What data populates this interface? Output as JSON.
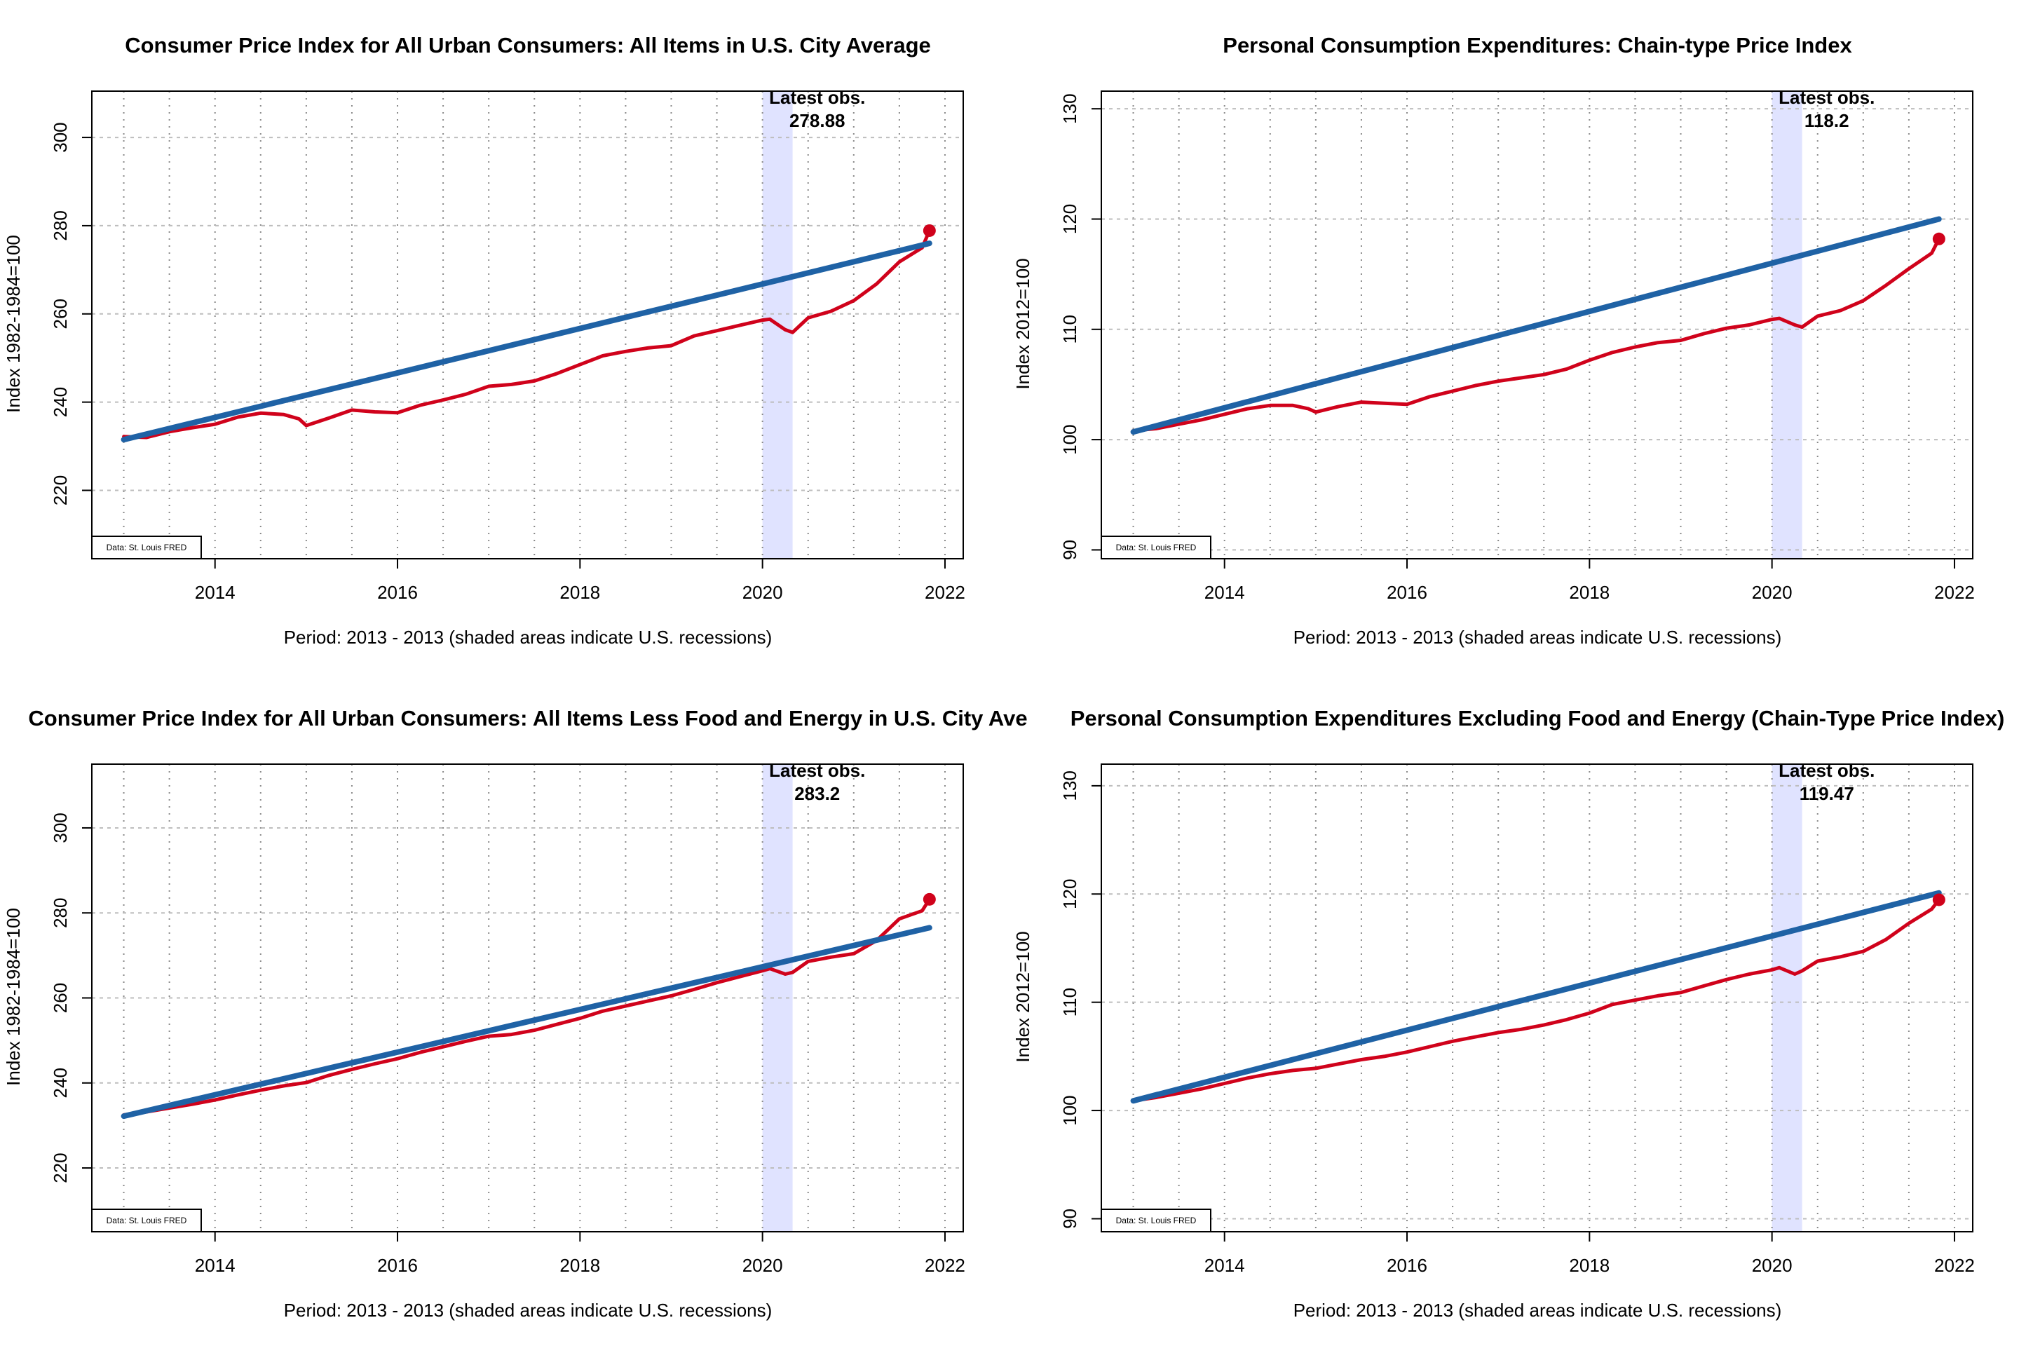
{
  "colors": {
    "actual": "#d0021b",
    "trend": "#1f62a5",
    "recession": "#e0e3ff",
    "grid": "#bdbdbd"
  },
  "chart_data": [
    {
      "type": "line",
      "title": "Consumer Price Index for All Urban Consumers: All Items in U.S. City Average",
      "xlabel": "Period: 2013 - 2013 (shaded areas indicate U.S. recessions)",
      "ylabel": "Index 1982-1984=100",
      "xlim": [
        2012.65,
        2022.2
      ],
      "ylim": [
        204.5,
        310.5
      ],
      "xticks": [
        "2014",
        "2016",
        "2018",
        "2020",
        "2022"
      ],
      "yticks": [
        "220",
        "240",
        "260",
        "280",
        "300"
      ],
      "grid": true,
      "recession": [
        2020.0,
        2020.33
      ],
      "latest_label": "Latest obs.",
      "latest_value": "278.88",
      "source": "Data: St. Louis FRED",
      "series": [
        {
          "role": "actual",
          "x": [
            2013.0,
            2013.25,
            2013.5,
            2013.75,
            2014.0,
            2014.25,
            2014.5,
            2014.75,
            2014.92,
            2015.0,
            2015.25,
            2015.5,
            2015.75,
            2016.0,
            2016.25,
            2016.5,
            2016.75,
            2017.0,
            2017.25,
            2017.5,
            2017.75,
            2018.0,
            2018.25,
            2018.5,
            2018.75,
            2019.0,
            2019.25,
            2019.5,
            2019.75,
            2020.0,
            2020.08,
            2020.25,
            2020.33,
            2020.5,
            2020.75,
            2021.0,
            2021.25,
            2021.5,
            2021.75,
            2021.83
          ],
          "y": [
            232.2,
            232.0,
            233.3,
            234.2,
            235.0,
            236.6,
            237.5,
            237.2,
            236.2,
            234.7,
            236.4,
            238.2,
            237.8,
            237.6,
            239.3,
            240.5,
            241.8,
            243.6,
            244.0,
            244.8,
            246.5,
            248.5,
            250.5,
            251.5,
            252.3,
            252.8,
            255.0,
            256.2,
            257.4,
            258.6,
            258.8,
            256.4,
            255.8,
            259.1,
            260.6,
            263.0,
            266.8,
            271.8,
            275.0,
            278.88
          ]
        },
        {
          "role": "trend",
          "x": [
            2013.0,
            2021.83
          ],
          "y": [
            231.5,
            276.0
          ]
        }
      ]
    },
    {
      "type": "line",
      "title": "Personal Consumption Expenditures: Chain-type Price Index",
      "xlabel": "Period: 2013 - 2013 (shaded areas indicate U.S. recessions)",
      "ylabel": "Index 2012=100",
      "xlim": [
        2012.65,
        2022.2
      ],
      "ylim": [
        89.2,
        131.6
      ],
      "xticks": [
        "2014",
        "2016",
        "2018",
        "2020",
        "2022"
      ],
      "yticks": [
        "90",
        "100",
        "110",
        "120",
        "130"
      ],
      "grid": true,
      "recession": [
        2020.0,
        2020.33
      ],
      "latest_label": "Latest obs.",
      "latest_value": "118.2",
      "source": "Data: St. Louis FRED",
      "series": [
        {
          "role": "actual",
          "x": [
            2013.0,
            2013.25,
            2013.5,
            2013.75,
            2014.0,
            2014.25,
            2014.5,
            2014.75,
            2014.92,
            2015.0,
            2015.25,
            2015.5,
            2015.75,
            2016.0,
            2016.25,
            2016.5,
            2016.75,
            2017.0,
            2017.25,
            2017.5,
            2017.75,
            2018.0,
            2018.25,
            2018.5,
            2018.75,
            2019.0,
            2019.25,
            2019.5,
            2019.75,
            2020.0,
            2020.08,
            2020.25,
            2020.33,
            2020.5,
            2020.75,
            2021.0,
            2021.25,
            2021.5,
            2021.75,
            2021.83
          ],
          "y": [
            100.8,
            101.0,
            101.4,
            101.8,
            102.3,
            102.8,
            103.1,
            103.1,
            102.8,
            102.5,
            103.0,
            103.4,
            103.3,
            103.2,
            103.9,
            104.4,
            104.9,
            105.3,
            105.6,
            105.9,
            106.4,
            107.2,
            107.9,
            108.4,
            108.8,
            109.0,
            109.6,
            110.1,
            110.4,
            110.9,
            111.0,
            110.4,
            110.2,
            111.2,
            111.7,
            112.6,
            114.0,
            115.5,
            116.9,
            118.2
          ]
        },
        {
          "role": "trend",
          "x": [
            2013.0,
            2021.83
          ],
          "y": [
            100.7,
            120.0
          ]
        }
      ]
    },
    {
      "type": "line",
      "title": "Consumer Price Index for All Urban Consumers: All Items Less Food and Energy in U.S. City Ave",
      "xlabel": "Period: 2013 - 2013 (shaded areas indicate U.S. recessions)",
      "ylabel": "Index 1982-1984=100",
      "xlim": [
        2012.65,
        2022.2
      ],
      "ylim": [
        205.0,
        315.0
      ],
      "xticks": [
        "2014",
        "2016",
        "2018",
        "2020",
        "2022"
      ],
      "yticks": [
        "220",
        "240",
        "260",
        "280",
        "300"
      ],
      "grid": true,
      "recession": [
        2020.0,
        2020.33
      ],
      "latest_label": "Latest obs.",
      "latest_value": "283.2",
      "source": "Data: St. Louis FRED",
      "series": [
        {
          "role": "actual",
          "x": [
            2013.0,
            2013.25,
            2013.5,
            2013.75,
            2014.0,
            2014.25,
            2014.5,
            2014.75,
            2015.0,
            2015.25,
            2015.5,
            2015.75,
            2016.0,
            2016.25,
            2016.5,
            2016.75,
            2017.0,
            2017.25,
            2017.5,
            2017.75,
            2018.0,
            2018.25,
            2018.5,
            2018.75,
            2019.0,
            2019.25,
            2019.5,
            2019.75,
            2020.0,
            2020.08,
            2020.25,
            2020.33,
            2020.5,
            2020.75,
            2021.0,
            2021.25,
            2021.5,
            2021.75,
            2021.83
          ],
          "y": [
            232.5,
            233.2,
            234.1,
            235.0,
            236.0,
            237.2,
            238.3,
            239.3,
            240.1,
            241.8,
            243.2,
            244.5,
            245.7,
            247.2,
            248.5,
            249.8,
            251.0,
            251.4,
            252.4,
            253.8,
            255.2,
            256.9,
            258.1,
            259.3,
            260.5,
            262.0,
            263.6,
            265.0,
            266.4,
            266.9,
            265.6,
            266.0,
            268.6,
            269.6,
            270.4,
            273.5,
            278.6,
            280.5,
            283.2
          ]
        },
        {
          "role": "trend",
          "x": [
            2013.0,
            2021.83
          ],
          "y": [
            232.2,
            276.5
          ]
        }
      ]
    },
    {
      "type": "line",
      "title": "Personal Consumption Expenditures Excluding Food and Energy (Chain-Type Price Index)",
      "xlabel": "Period: 2013 - 2013 (shaded areas indicate U.S. recessions)",
      "ylabel": "Index 2012=100",
      "xlim": [
        2012.65,
        2022.2
      ],
      "ylim": [
        88.8,
        132.0
      ],
      "xticks": [
        "2014",
        "2016",
        "2018",
        "2020",
        "2022"
      ],
      "yticks": [
        "90",
        "100",
        "110",
        "120",
        "130"
      ],
      "grid": true,
      "recession": [
        2020.0,
        2020.33
      ],
      "latest_label": "Latest obs.",
      "latest_value": "119.47",
      "source": "Data: St. Louis FRED",
      "series": [
        {
          "role": "actual",
          "x": [
            2013.0,
            2013.25,
            2013.5,
            2013.75,
            2014.0,
            2014.25,
            2014.5,
            2014.75,
            2015.0,
            2015.25,
            2015.5,
            2015.75,
            2016.0,
            2016.25,
            2016.5,
            2016.75,
            2017.0,
            2017.25,
            2017.5,
            2017.75,
            2018.0,
            2018.25,
            2018.5,
            2018.75,
            2019.0,
            2019.25,
            2019.5,
            2019.75,
            2020.0,
            2020.08,
            2020.25,
            2020.33,
            2020.5,
            2020.75,
            2021.0,
            2021.25,
            2021.5,
            2021.75,
            2021.83
          ],
          "y": [
            100.9,
            101.2,
            101.6,
            102.0,
            102.5,
            103.0,
            103.4,
            103.7,
            103.9,
            104.3,
            104.7,
            105.0,
            105.4,
            105.9,
            106.4,
            106.8,
            107.2,
            107.5,
            107.9,
            108.4,
            109.0,
            109.8,
            110.2,
            110.6,
            110.9,
            111.5,
            112.1,
            112.6,
            113.0,
            113.2,
            112.6,
            112.9,
            113.8,
            114.2,
            114.7,
            115.8,
            117.3,
            118.6,
            119.47
          ]
        },
        {
          "role": "trend",
          "x": [
            2013.0,
            2021.83
          ],
          "y": [
            100.9,
            120.1
          ]
        }
      ]
    }
  ]
}
